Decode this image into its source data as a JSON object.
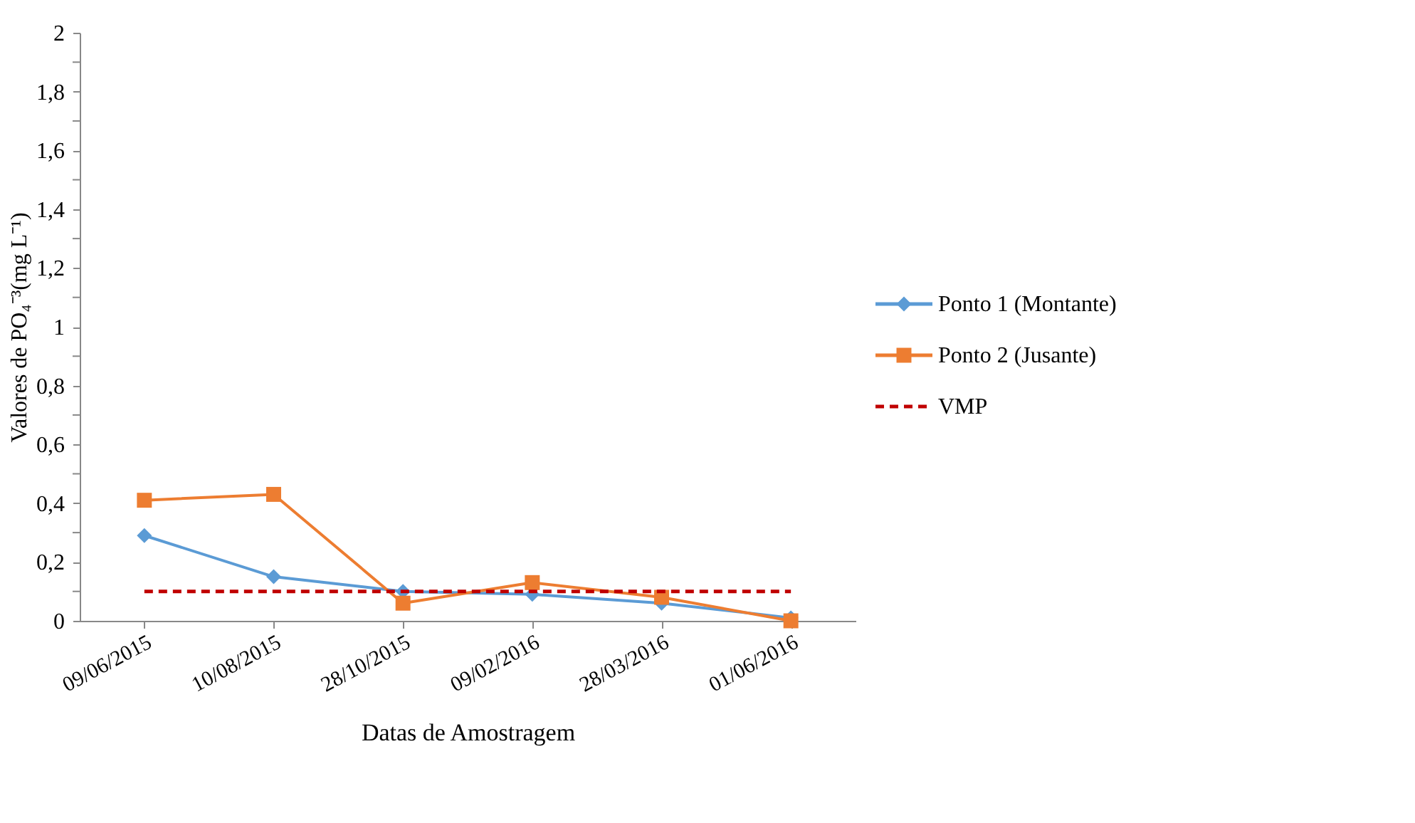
{
  "chart_data": {
    "type": "line",
    "xlabel": "Datas de Amostragem",
    "ylabel": "Valores de PO₄⁻³(mg L⁻¹)",
    "categories": [
      "09/06/2015",
      "10/08/2015",
      "28/10/2015",
      "09/02/2016",
      "28/03/2016",
      "01/06/2016"
    ],
    "series": [
      {
        "name": "Ponto 1 (Montante)",
        "color": "#5b9bd5",
        "marker": "diamond",
        "values": [
          0.29,
          0.15,
          0.1,
          0.09,
          0.06,
          0.01
        ]
      },
      {
        "name": "Ponto 2 (Jusante)",
        "color": "#ed7d31",
        "marker": "square",
        "values": [
          0.41,
          0.43,
          0.06,
          0.13,
          0.08,
          0.0
        ]
      },
      {
        "name": "VMP",
        "color": "#c00000",
        "marker": "none",
        "line_style": "dashed",
        "values": [
          0.1,
          0.1,
          0.1,
          0.1,
          0.1,
          0.1
        ]
      }
    ],
    "ylim": [
      0,
      2
    ],
    "yticks": [
      0,
      {
        "value": 0.1,
        "label": null
      },
      {
        "value": 0.2,
        "label": "0,2"
      },
      {
        "value": 0.3,
        "label": null
      },
      {
        "value": 0.4,
        "label": "0,4"
      },
      {
        "value": 0.5,
        "label": null
      },
      {
        "value": 0.6,
        "label": "0,6"
      },
      {
        "value": 0.7,
        "label": null
      },
      {
        "value": 0.8,
        "label": "0,8"
      },
      {
        "value": 0.9,
        "label": null
      },
      1,
      {
        "value": 1.1,
        "label": null
      },
      {
        "value": 1.2,
        "label": "1,2"
      },
      {
        "value": 1.3,
        "label": null
      },
      {
        "value": 1.4,
        "label": "1,4"
      },
      {
        "value": 1.5,
        "label": null
      },
      {
        "value": 1.6,
        "label": "1,6"
      },
      {
        "value": 1.7,
        "label": null
      },
      {
        "value": 1.8,
        "label": "1,8"
      },
      {
        "value": 1.9,
        "label": null
      },
      2
    ],
    "grid": false,
    "legend": "right"
  }
}
